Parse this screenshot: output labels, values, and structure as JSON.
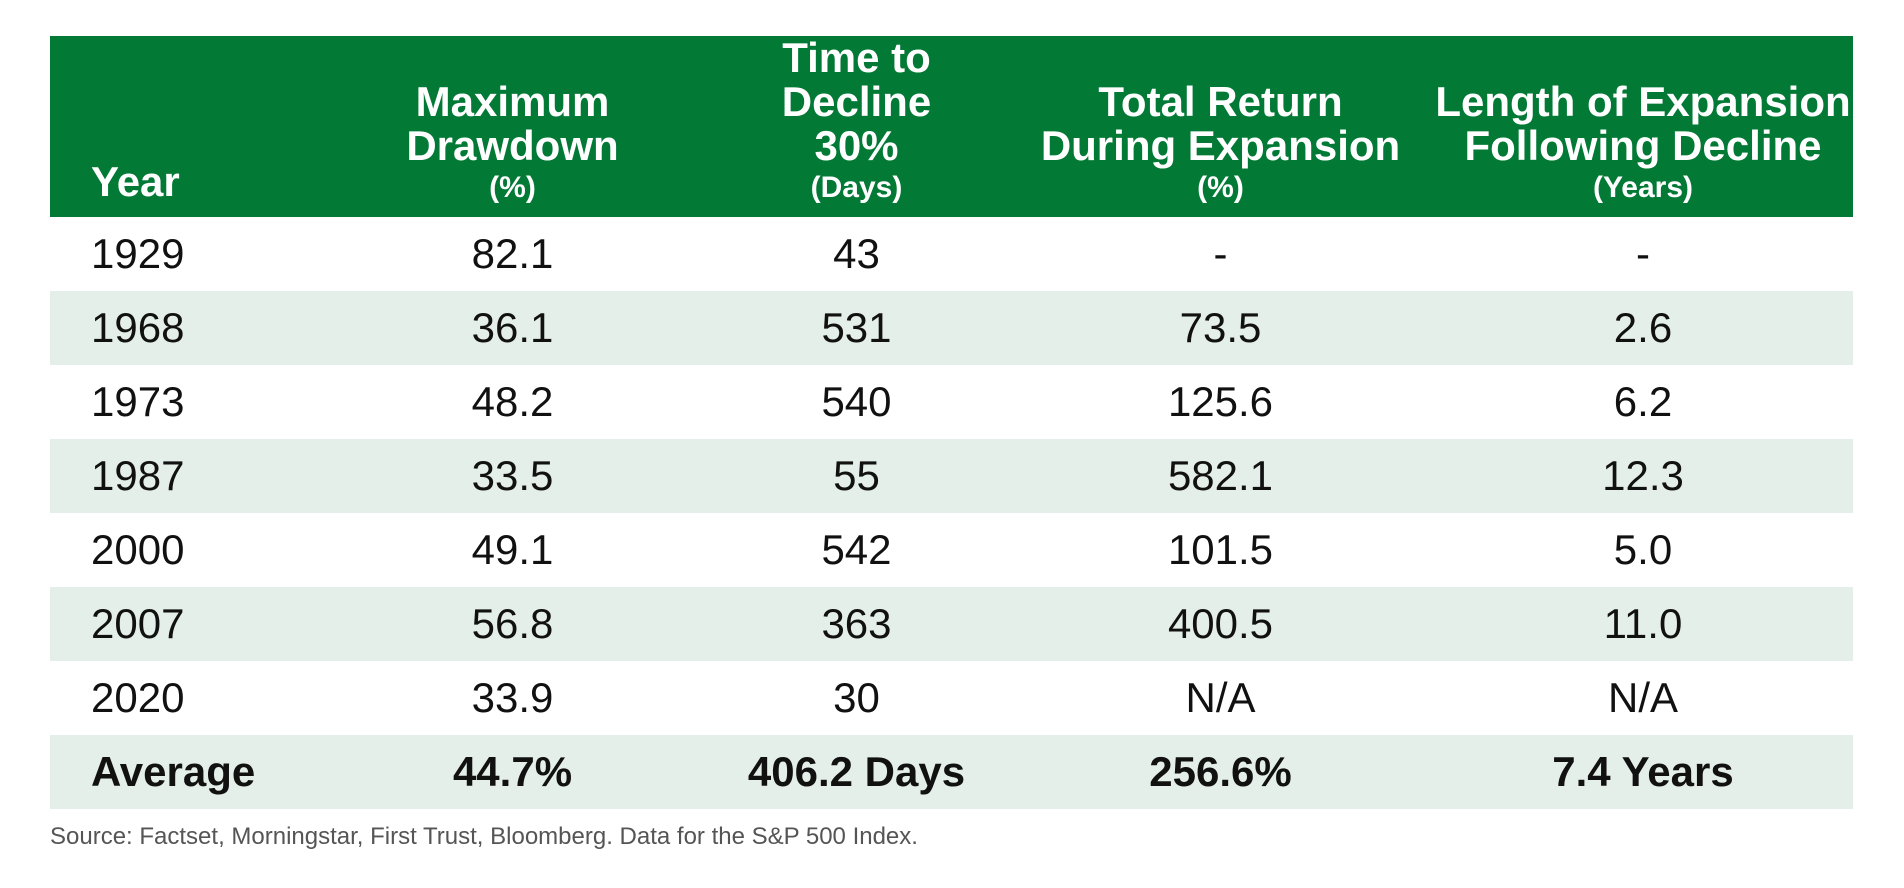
{
  "headers": [
    {
      "main": "Year",
      "unit": ""
    },
    {
      "main_lines": [
        "Maximum",
        "Drawdown"
      ],
      "unit": "(%)"
    },
    {
      "main_lines": [
        "Time to Decline",
        "30%"
      ],
      "unit": "(Days)"
    },
    {
      "main_lines": [
        "Total Return",
        "During Expansion"
      ],
      "unit": "(%)"
    },
    {
      "main_lines": [
        "Length of Expansion",
        "Following Decline"
      ],
      "unit": "(Years)"
    }
  ],
  "rows": [
    [
      "1929",
      "82.1",
      "43",
      "-",
      "-"
    ],
    [
      "1968",
      "36.1",
      "531",
      "73.5",
      "2.6"
    ],
    [
      "1973",
      "48.2",
      "540",
      "125.6",
      "6.2"
    ],
    [
      "1987",
      "33.5",
      "55",
      "582.1",
      "12.3"
    ],
    [
      "2000",
      "49.1",
      "542",
      "101.5",
      "5.0"
    ],
    [
      "2007",
      "56.8",
      "363",
      "400.5",
      "11.0"
    ],
    [
      "2020",
      "33.9",
      "30",
      "N/A",
      "N/A"
    ]
  ],
  "average": [
    "Average",
    "44.7%",
    "406.2 Days",
    "256.6%",
    "7.4 Years"
  ],
  "source": "Source: Factset, Morningstar, First Trust, Bloomberg. Data for the S&P 500 Index.",
  "colors": {
    "header_bg": "#027a35",
    "alt_row_bg": "#e5efe9",
    "header_text": "#ffffff"
  }
}
